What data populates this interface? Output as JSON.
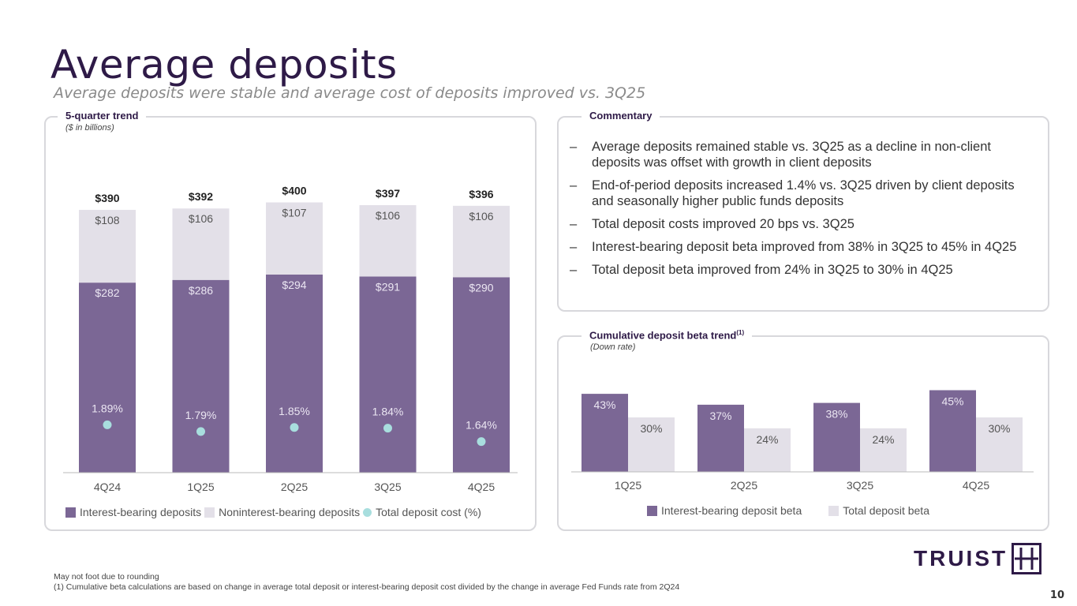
{
  "title": "Average deposits",
  "subtitle": "Average deposits were stable and average cost of deposits improved vs. 3Q25",
  "left_panel": {
    "label": "5-quarter trend",
    "sublabel": "($ in billions)"
  },
  "commentary": {
    "label": "Commentary",
    "items": [
      "Average deposits remained stable vs. 3Q25 as a decline in non-client deposits was offset with growth in client deposits",
      "End-of-period deposits increased 1.4% vs. 3Q25 driven by client deposits and seasonally higher public funds deposits",
      "Total deposit costs improved 20 bps vs. 3Q25",
      "Interest-bearing deposit beta improved from 38% in 3Q25 to 45% in 4Q25",
      "Total deposit beta improved from 24% in 3Q25 to 30% in 4Q25"
    ]
  },
  "beta_panel": {
    "label": "Cumulative deposit beta trend",
    "label_sup": "(1)",
    "sublabel": "(Down rate)"
  },
  "colors": {
    "interest_bearing": "#7b6795",
    "noninterest_bearing": "#e3e0e8",
    "cost_dot": "#a8dede",
    "title": "#2e1a47"
  },
  "chart_data": [
    {
      "type": "bar",
      "stacked": true,
      "title": "5-quarter trend",
      "categories": [
        "4Q24",
        "1Q25",
        "2Q25",
        "3Q25",
        "4Q25"
      ],
      "series": [
        {
          "name": "Interest-bearing deposits",
          "values": [
            282,
            286,
            294,
            291,
            290
          ],
          "labels": [
            "$282",
            "$286",
            "$294",
            "$291",
            "$290"
          ]
        },
        {
          "name": "Noninterest-bearing deposits",
          "values": [
            108,
            106,
            107,
            106,
            106
          ],
          "labels": [
            "$108",
            "$106",
            "$107",
            "$106",
            "$106"
          ]
        }
      ],
      "totals": [
        "$390",
        "$392",
        "$400",
        "$397",
        "$396"
      ],
      "line_series": {
        "name": "Total deposit cost (%)",
        "values": [
          1.89,
          1.79,
          1.85,
          1.84,
          1.64
        ],
        "labels": [
          "1.89%",
          "1.79%",
          "1.85%",
          "1.84%",
          "1.64%"
        ]
      },
      "ylim": [
        0,
        400
      ],
      "legend": [
        "Interest-bearing deposits",
        "Noninterest-bearing deposits",
        "Total deposit cost (%)"
      ]
    },
    {
      "type": "bar",
      "stacked": false,
      "title": "Cumulative deposit beta trend",
      "categories": [
        "1Q25",
        "2Q25",
        "3Q25",
        "4Q25"
      ],
      "series": [
        {
          "name": "Interest-bearing deposit beta",
          "values": [
            43,
            37,
            38,
            45
          ],
          "labels": [
            "43%",
            "37%",
            "38%",
            "45%"
          ]
        },
        {
          "name": "Total deposit beta",
          "values": [
            30,
            24,
            24,
            30
          ],
          "labels": [
            "30%",
            "24%",
            "24%",
            "30%"
          ]
        }
      ],
      "ylim": [
        0,
        45
      ],
      "legend": [
        "Interest-bearing deposit beta",
        "Total deposit beta"
      ]
    }
  ],
  "footnotes": {
    "line1": "May not foot due to rounding",
    "line2": "(1)  Cumulative beta calculations are based on change in average total deposit or interest-bearing deposit cost divided by the change in average Fed Funds rate from 2Q24"
  },
  "logo_text": "TRUIST",
  "page_number": "10"
}
